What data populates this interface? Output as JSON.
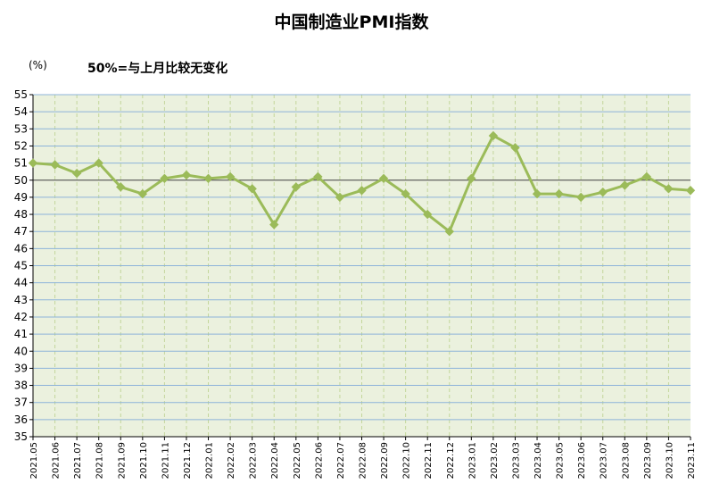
{
  "chart_data": {
    "type": "line",
    "title": "中国制造业PMI指数",
    "unit_label": "(%)",
    "annotation": "50%=与上月比较无变化",
    "ylim": [
      35,
      55
    ],
    "ytick_step": 1,
    "reference_line": 50,
    "grid": true,
    "categories": [
      "2021.05",
      "2021.06",
      "2021.07",
      "2021.08",
      "2021.09",
      "2021.10",
      "2021.11",
      "2021.12",
      "2022.01",
      "2022.02",
      "2022.03",
      "2022.04",
      "2022.05",
      "2022.06",
      "2022.07",
      "2022.08",
      "2022.09",
      "2022.10",
      "2022.11",
      "2022.12",
      "2023.01",
      "2023.02",
      "2023.03",
      "2023.04",
      "2023.05",
      "2023.06",
      "2023.07",
      "2023.08",
      "2023.09",
      "2023.10",
      "2023.11"
    ],
    "series": [
      {
        "values": [
          51.0,
          50.9,
          50.4,
          51.0,
          49.6,
          49.2,
          50.1,
          50.3,
          50.1,
          50.2,
          49.5,
          47.4,
          49.6,
          50.2,
          49.0,
          49.4,
          50.1,
          49.2,
          48.0,
          47.0,
          50.1,
          52.6,
          51.9,
          49.2,
          49.2,
          49.0,
          49.3,
          49.7,
          50.2,
          49.5,
          49.4
        ]
      }
    ],
    "colors": {
      "line": "#9bbb59",
      "plot_bg": "#ebf1de",
      "hgrid": "#8db3d9",
      "vgrid": "#c3d69b",
      "reference": "#404040"
    }
  }
}
